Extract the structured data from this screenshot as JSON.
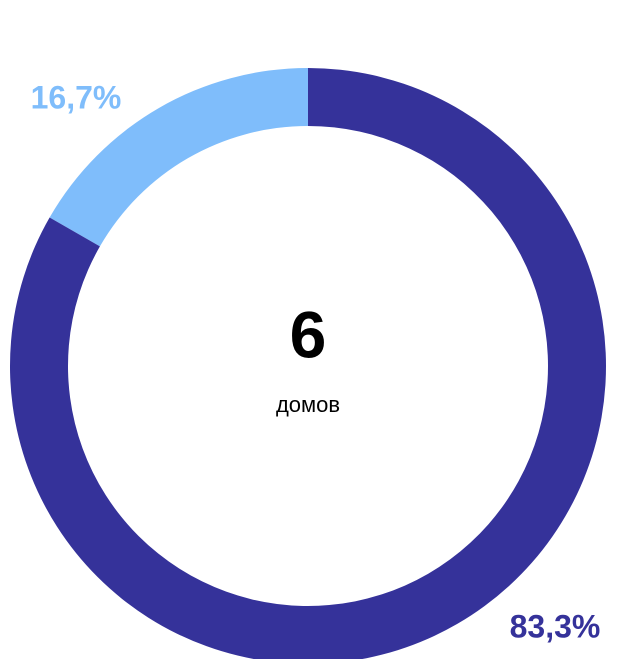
{
  "chart_data": {
    "type": "donut",
    "values": [
      83.3,
      16.7
    ],
    "value_labels": [
      "83,3%",
      "16,7%"
    ],
    "colors": [
      "#35329a",
      "#7fbdfb"
    ],
    "total": 6,
    "total_label": "домов"
  }
}
